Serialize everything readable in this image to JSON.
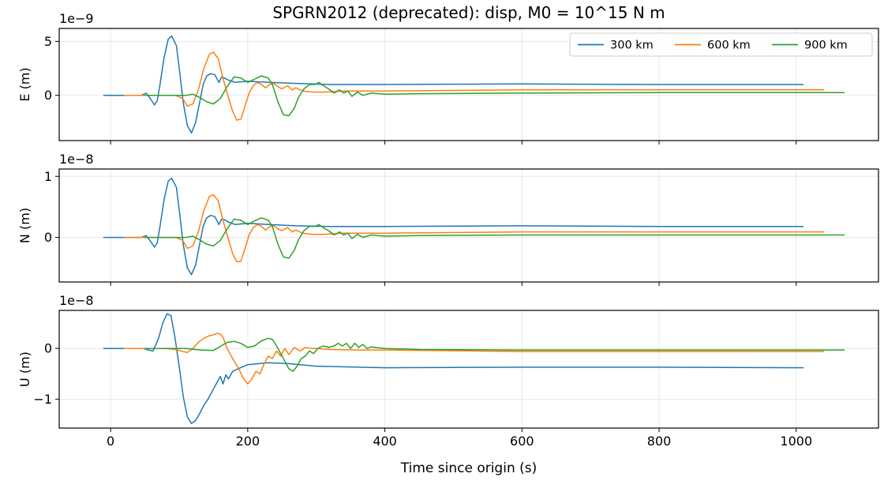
{
  "chart_data": {
    "type": "line",
    "title": "SPGRN2012 (deprecated): disp, M0 = 10^15 N m",
    "xlabel": "Time since origin (s)",
    "xlim": [
      -75,
      1120
    ],
    "xticks": [
      0,
      200,
      400,
      600,
      800,
      1000
    ],
    "xtick_labels": [
      "0",
      "200",
      "400",
      "600",
      "800",
      "1000"
    ],
    "grid": true,
    "legend": {
      "placement": "top-right",
      "entries": [
        "300 km",
        "600 km",
        "900 km"
      ]
    },
    "colors": {
      "300 km": "#1f77b4",
      "600 km": "#ff7f0e",
      "900 km": "#2ca02c"
    },
    "panels": [
      {
        "component": "E",
        "ylabel": "E (m)",
        "offset_label": "1e−9",
        "ylim": [
          -4.2,
          6.2
        ],
        "yticks": [
          -5,
          0,
          5
        ],
        "ytick_labels": [
          "",
          "0",
          "5"
        ],
        "series": [
          {
            "name": "300 km",
            "x": [
              -10,
              45,
              52,
              58,
              64,
              68,
              72,
              78,
              84,
              89,
              96,
              101,
              106,
              112,
              118,
              124,
              130,
              135,
              140,
              146,
              152,
              158,
              162,
              166,
              172,
              182,
              200,
              230,
              270,
              320,
              400,
              600,
              800,
              1010
            ],
            "y": [
              0,
              0,
              0.2,
              -0.3,
              -0.9,
              -0.5,
              1.0,
              3.5,
              5.2,
              5.5,
              4.6,
              2.0,
              -0.7,
              -2.8,
              -3.5,
              -2.5,
              -0.6,
              1.0,
              1.8,
              2.0,
              1.9,
              1.2,
              1.7,
              1.6,
              1.4,
              1.2,
              1.3,
              1.2,
              1.1,
              1.0,
              1.0,
              1.05,
              1.0,
              1.0
            ]
          },
          {
            "name": "600 km",
            "x": [
              20,
              45,
              80,
              95,
              105,
              112,
              120,
              128,
              136,
              144,
              150,
              157,
              163,
              170,
              178,
              184,
              190,
              196,
              202,
              208,
              214,
              220,
              226,
              232,
              238,
              244,
              250,
              258,
              265,
              270,
              280,
              295,
              310,
              340,
              400,
              600,
              800,
              1040
            ],
            "y": [
              0,
              0,
              0,
              0,
              -0.3,
              -1.0,
              -0.8,
              0.5,
              2.5,
              3.8,
              4.0,
              3.4,
              1.8,
              0.2,
              -1.5,
              -2.3,
              -2.2,
              -1.0,
              0.2,
              0.9,
              1.2,
              1.0,
              0.7,
              1.0,
              1.1,
              0.8,
              0.6,
              0.9,
              0.5,
              0.7,
              0.4,
              0.3,
              0.3,
              0.4,
              0.4,
              0.5,
              0.5,
              0.5
            ]
          },
          {
            "name": "900 km",
            "x": [
              50,
              80,
              110,
              120,
              130,
              140,
              150,
              160,
              170,
              180,
              190,
              200,
              210,
              220,
              230,
              236,
              244,
              252,
              260,
              268,
              274,
              282,
              290,
              298,
              304,
              310,
              318,
              326,
              334,
              340,
              346,
              352,
              360,
              368,
              380,
              400,
              450,
              600,
              800,
              1070
            ],
            "y": [
              0,
              0,
              0,
              0.1,
              -0.2,
              -0.6,
              -0.8,
              -0.3,
              0.8,
              1.7,
              1.6,
              1.2,
              1.5,
              1.8,
              1.6,
              1.0,
              -0.6,
              -1.8,
              -1.9,
              -1.2,
              -0.2,
              0.6,
              1.0,
              1.0,
              1.2,
              0.9,
              0.6,
              0.2,
              0.5,
              0.2,
              0.4,
              -0.1,
              0.3,
              0.0,
              0.2,
              0.1,
              0.15,
              0.2,
              0.25,
              0.25
            ]
          }
        ]
      },
      {
        "component": "N",
        "ylabel": "N (m)",
        "offset_label": "1e−8",
        "ylim": [
          -0.73,
          1.12
        ],
        "yticks": [
          -1,
          0,
          1
        ],
        "ytick_labels": [
          "",
          "0",
          "1"
        ],
        "series": [
          {
            "name": "300 km",
            "x": [
              -10,
              45,
              52,
              58,
              64,
              68,
              72,
              78,
              84,
              89,
              96,
              101,
              106,
              112,
              118,
              124,
              130,
              135,
              140,
              146,
              152,
              158,
              162,
              166,
              172,
              182,
              200,
              230,
              270,
              320,
              400,
              600,
              800,
              1010
            ],
            "y": [
              0,
              0,
              0.03,
              -0.06,
              -0.16,
              -0.09,
              0.18,
              0.62,
              0.92,
              0.97,
              0.82,
              0.36,
              -0.12,
              -0.5,
              -0.61,
              -0.45,
              -0.1,
              0.18,
              0.32,
              0.36,
              0.34,
              0.21,
              0.3,
              0.29,
              0.25,
              0.21,
              0.23,
              0.21,
              0.19,
              0.18,
              0.18,
              0.19,
              0.18,
              0.18
            ]
          },
          {
            "name": "600 km",
            "x": [
              20,
              45,
              80,
              95,
              105,
              112,
              120,
              128,
              136,
              144,
              150,
              157,
              163,
              170,
              178,
              184,
              190,
              196,
              202,
              208,
              214,
              220,
              226,
              232,
              238,
              244,
              250,
              258,
              265,
              270,
              280,
              295,
              310,
              340,
              400,
              600,
              800,
              1040
            ],
            "y": [
              0,
              0,
              0,
              0,
              -0.05,
              -0.18,
              -0.14,
              0.09,
              0.44,
              0.67,
              0.7,
              0.6,
              0.32,
              0.04,
              -0.27,
              -0.4,
              -0.39,
              -0.18,
              0.04,
              0.16,
              0.21,
              0.18,
              0.12,
              0.18,
              0.19,
              0.14,
              0.11,
              0.16,
              0.09,
              0.12,
              0.07,
              0.05,
              0.05,
              0.07,
              0.07,
              0.09,
              0.09,
              0.09
            ]
          },
          {
            "name": "900 km",
            "x": [
              50,
              80,
              110,
              120,
              130,
              140,
              150,
              160,
              170,
              180,
              190,
              200,
              210,
              220,
              230,
              236,
              244,
              252,
              260,
              268,
              274,
              282,
              290,
              298,
              304,
              310,
              318,
              326,
              334,
              340,
              346,
              352,
              360,
              368,
              380,
              400,
              450,
              600,
              800,
              1070
            ],
            "y": [
              0,
              0,
              0,
              0.02,
              -0.04,
              -0.11,
              -0.14,
              -0.05,
              0.14,
              0.3,
              0.28,
              0.21,
              0.27,
              0.32,
              0.28,
              0.18,
              -0.11,
              -0.32,
              -0.34,
              -0.21,
              -0.04,
              0.11,
              0.18,
              0.18,
              0.21,
              0.16,
              0.11,
              0.04,
              0.09,
              0.04,
              0.07,
              -0.02,
              0.05,
              0.0,
              0.04,
              0.02,
              0.03,
              0.04,
              0.04,
              0.04
            ]
          }
        ]
      },
      {
        "component": "U",
        "ylabel": "U (m)",
        "offset_label": "1e−8",
        "ylim": [
          -1.57,
          0.75
        ],
        "yticks": [
          -1,
          0
        ],
        "ytick_labels": [
          "−1",
          "0"
        ],
        "series": [
          {
            "name": "300 km",
            "x": [
              -10,
              40,
              48,
              55,
              62,
              70,
              76,
              82,
              88,
              94,
              100,
              106,
              112,
              118,
              124,
              130,
              136,
              142,
              148,
              154,
              160,
              164,
              168,
              172,
              178,
              186,
              200,
              230,
              260,
              300,
              400,
              600,
              800,
              1010
            ],
            "y": [
              0,
              0,
              0,
              -0.03,
              -0.05,
              0.2,
              0.5,
              0.68,
              0.65,
              0.2,
              -0.35,
              -0.95,
              -1.35,
              -1.48,
              -1.42,
              -1.28,
              -1.12,
              -1.0,
              -0.85,
              -0.7,
              -0.55,
              -0.7,
              -0.52,
              -0.6,
              -0.45,
              -0.4,
              -0.32,
              -0.28,
              -0.3,
              -0.35,
              -0.38,
              -0.37,
              -0.37,
              -0.38
            ]
          },
          {
            "name": "600 km",
            "x": [
              20,
              45,
              80,
              95,
              105,
              112,
              120,
              128,
              136,
              144,
              150,
              156,
              160,
              164,
              170,
              178,
              186,
              194,
              200,
              206,
              212,
              218,
              224,
              230,
              236,
              242,
              248,
              254,
              260,
              268,
              276,
              284,
              292,
              300,
              320,
              360,
              400,
              600,
              800,
              1040
            ],
            "y": [
              0,
              0,
              0,
              -0.02,
              -0.06,
              -0.08,
              0.0,
              0.12,
              0.2,
              0.25,
              0.27,
              0.3,
              0.28,
              0.22,
              0.0,
              -0.2,
              -0.38,
              -0.6,
              -0.7,
              -0.6,
              -0.45,
              -0.5,
              -0.3,
              -0.15,
              -0.2,
              -0.05,
              -0.15,
              0.0,
              -0.12,
              0.02,
              -0.05,
              0.02,
              0.0,
              0.0,
              -0.02,
              -0.03,
              -0.03,
              -0.06,
              -0.06,
              -0.06
            ]
          },
          {
            "name": "900 km",
            "x": [
              50,
              80,
              110,
              130,
              150,
              170,
              180,
              190,
              200,
              210,
              220,
              230,
              236,
              242,
              248,
              254,
              260,
              266,
              272,
              278,
              284,
              290,
              296,
              302,
              310,
              318,
              326,
              332,
              338,
              344,
              350,
              356,
              362,
              368,
              374,
              380,
              400,
              450,
              600,
              800,
              1070
            ],
            "y": [
              0,
              0,
              0,
              -0.03,
              -0.04,
              0.12,
              0.14,
              0.1,
              0.02,
              0.05,
              0.15,
              0.2,
              0.18,
              0.05,
              -0.1,
              -0.25,
              -0.4,
              -0.45,
              -0.35,
              -0.2,
              -0.15,
              -0.05,
              -0.1,
              0.0,
              0.05,
              0.02,
              0.05,
              0.1,
              0.05,
              0.1,
              0.0,
              0.1,
              0.02,
              0.08,
              0.0,
              0.03,
              0.0,
              -0.02,
              -0.03,
              -0.03,
              -0.03
            ]
          }
        ]
      }
    ]
  }
}
